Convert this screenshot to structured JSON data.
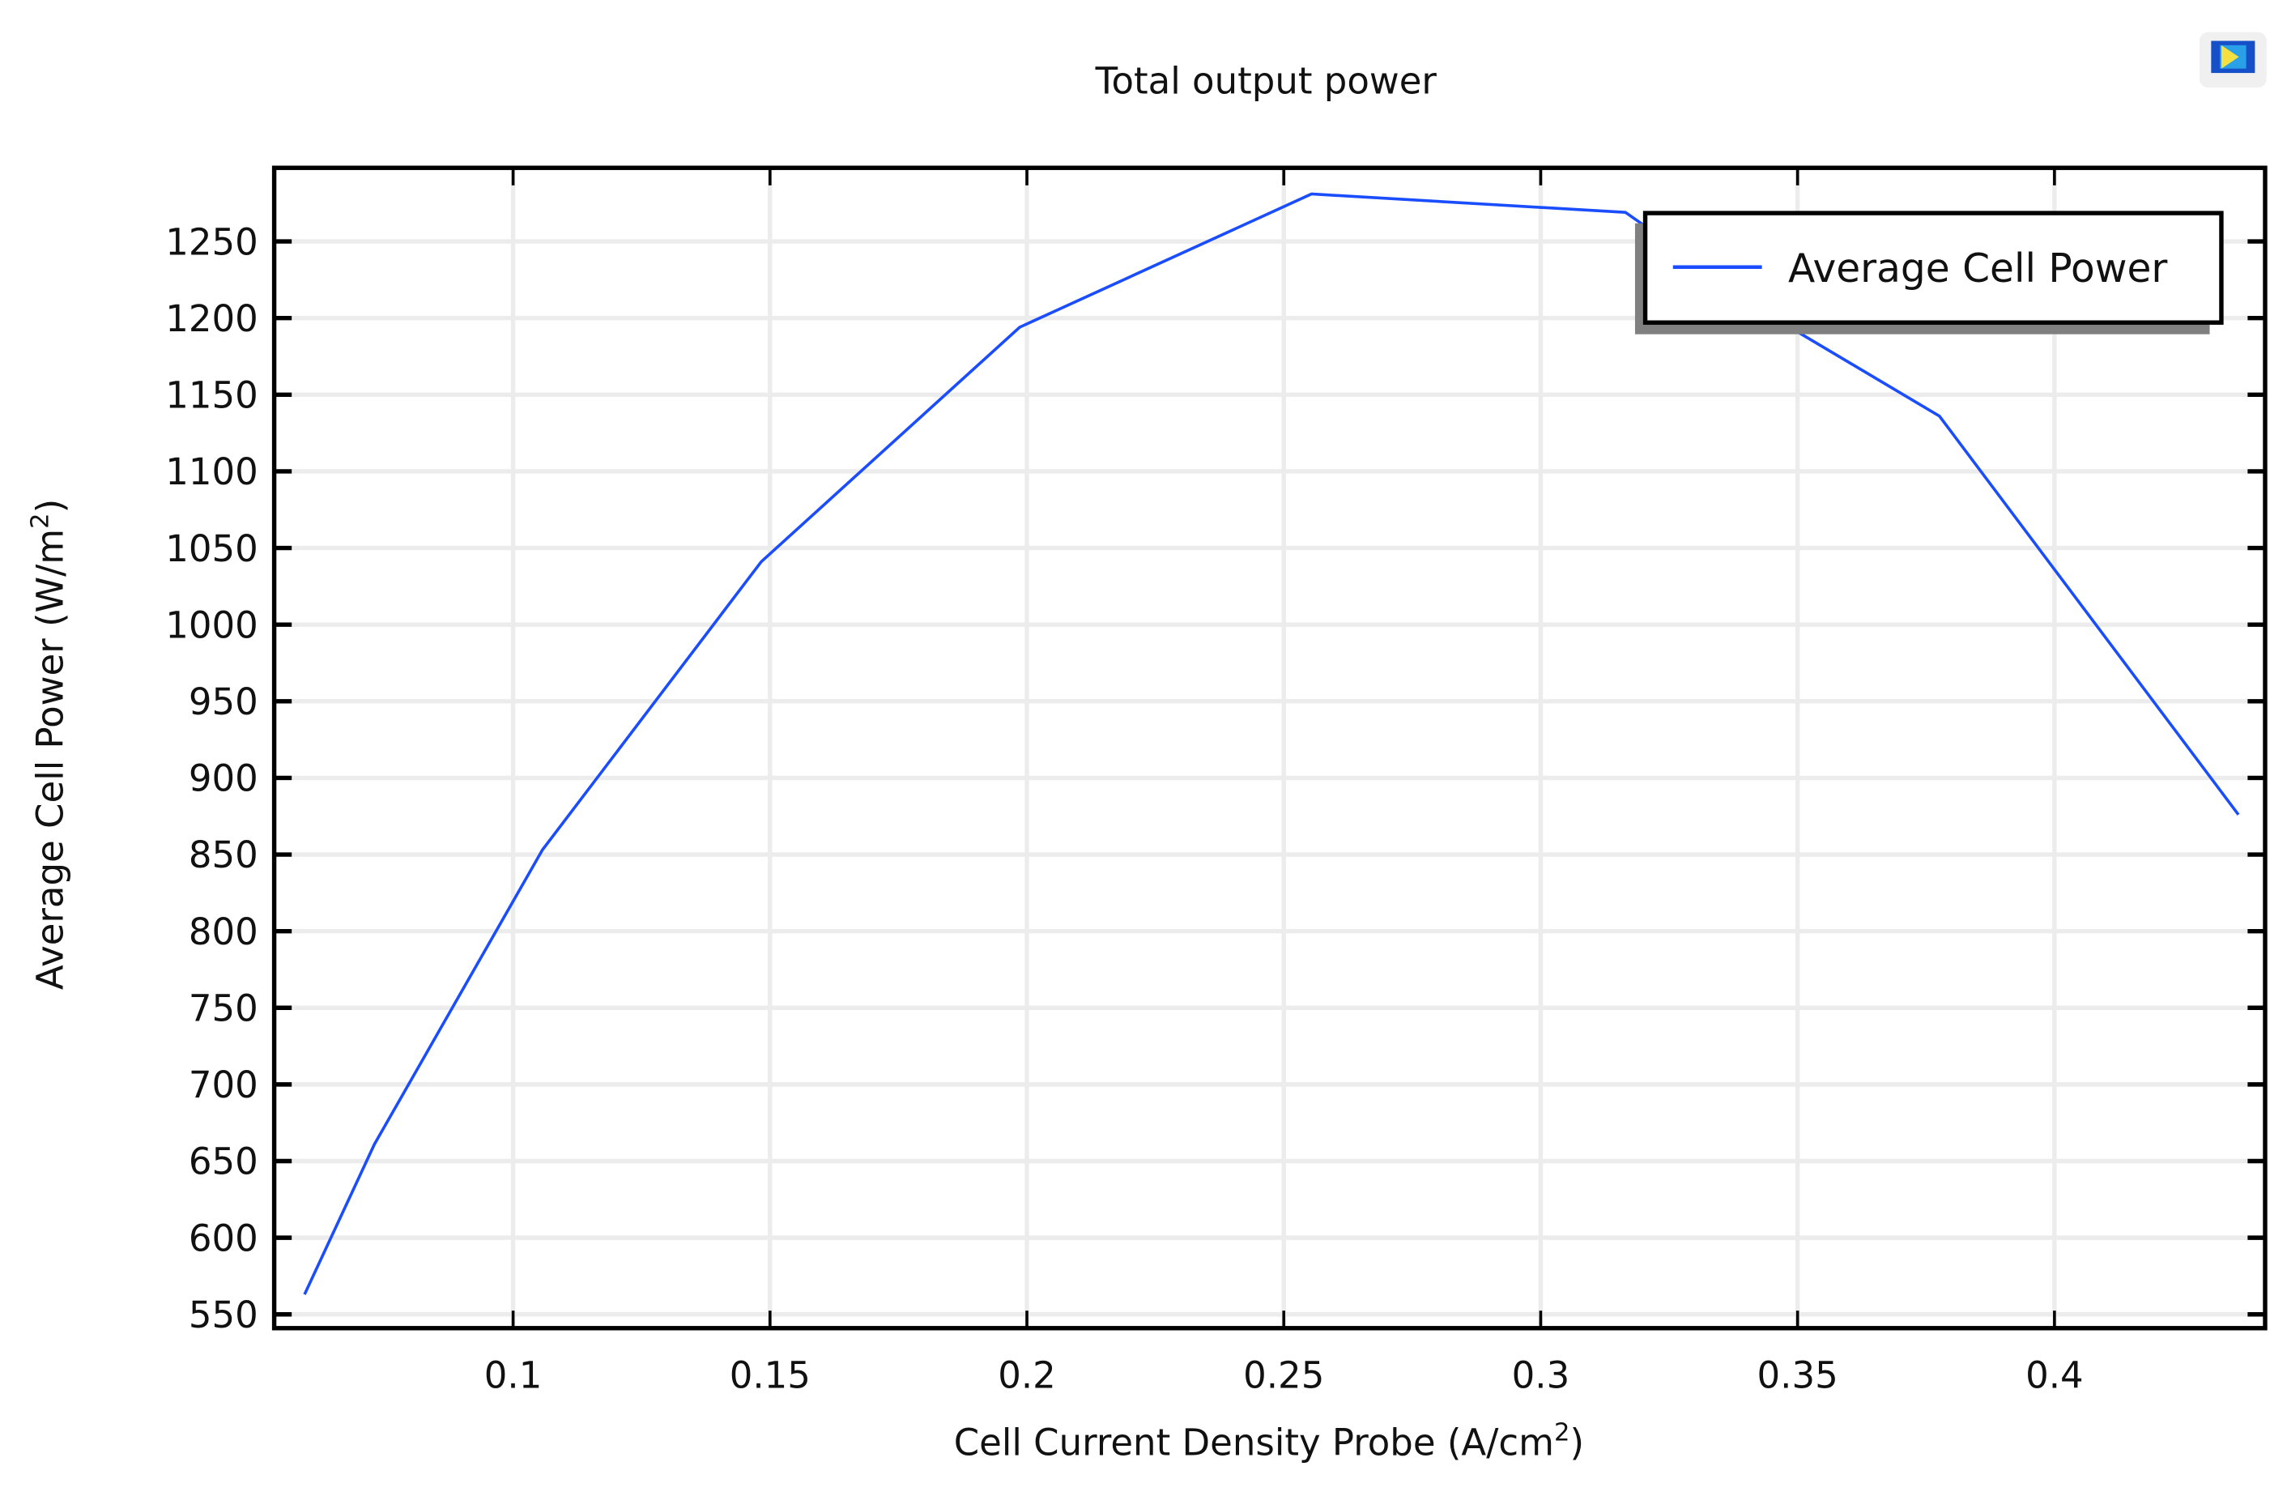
{
  "chart_data": {
    "type": "line",
    "title": "Total output power",
    "xlabel": "Cell Current Density Probe (A/cm²)",
    "xlabel_base": "Cell Current Density Probe (A/cm",
    "xlabel_sup": "2",
    "xlabel_tail": ")",
    "ylabel": "Average Cell Power (W/m²)",
    "ylabel_base": "Average Cell Power (W/m",
    "ylabel_sup": "2",
    "ylabel_tail": ")",
    "xlim": [
      0.0535,
      0.441
    ],
    "ylim": [
      541,
      1298
    ],
    "x_ticks": [
      0.1,
      0.15,
      0.2,
      0.25,
      0.3,
      0.35,
      0.4
    ],
    "x_tick_labels": [
      "0.1",
      "0.15",
      "0.2",
      "0.25",
      "0.3",
      "0.35",
      "0.4"
    ],
    "y_ticks": [
      550,
      600,
      650,
      700,
      750,
      800,
      850,
      900,
      950,
      1000,
      1050,
      1100,
      1150,
      1200,
      1250
    ],
    "y_tick_labels": [
      "550",
      "600",
      "650",
      "700",
      "750",
      "800",
      "850",
      "900",
      "950",
      "1000",
      "1050",
      "1100",
      "1150",
      "1200",
      "1250"
    ],
    "grid": true,
    "legend_position": "upper right",
    "series": [
      {
        "name": "Average Cell Power",
        "color": "#1a4dff",
        "x": [
          0.0594,
          0.073,
          0.1057,
          0.1483,
          0.1986,
          0.2554,
          0.3165,
          0.349,
          0.3776,
          0.4358
        ],
        "y": [
          563,
          661,
          853,
          1041,
          1194,
          1281,
          1269,
          1193,
          1136,
          876
        ]
      }
    ]
  },
  "toolbar": {
    "icon_name": "comsol-logo-icon"
  },
  "colors": {
    "line": "#1a4dff",
    "grid": "#ececec",
    "axis": "#000000",
    "legend_shadow": "#808080"
  }
}
